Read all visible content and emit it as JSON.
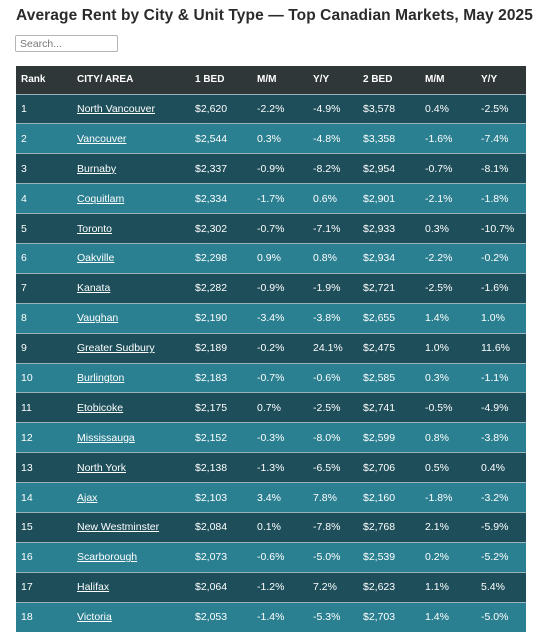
{
  "page": {
    "title": "Average Rent by City & Unit Type — Top Canadian Markets, May 2025"
  },
  "search": {
    "placeholder": "Search..."
  },
  "table": {
    "headers": [
      "Rank",
      "CITY/ AREA",
      "1 BED",
      "M/M",
      "Y/Y",
      "2 BED",
      "M/M",
      "Y/Y"
    ],
    "rows": [
      [
        "1",
        "North Vancouver",
        "$2,620",
        "-2.2%",
        "-4.9%",
        "$3,578",
        "0.4%",
        "-2.5%"
      ],
      [
        "2",
        "Vancouver",
        "$2,544",
        "0.3%",
        "-4.8%",
        "$3,358",
        "-1.6%",
        "-7.4%"
      ],
      [
        "3",
        "Burnaby",
        "$2,337",
        "-0.9%",
        "-8.2%",
        "$2,954",
        "-0.7%",
        "-8.1%"
      ],
      [
        "4",
        "Coquitlam",
        "$2,334",
        "-1.7%",
        "0.6%",
        "$2,901",
        "-2.1%",
        "-1.8%"
      ],
      [
        "5",
        "Toronto",
        "$2,302",
        "-0.7%",
        "-7.1%",
        "$2,933",
        "0.3%",
        "-10.7%"
      ],
      [
        "6",
        "Oakville",
        "$2,298",
        "0.9%",
        "0.8%",
        "$2,934",
        "-2.2%",
        "-0.2%"
      ],
      [
        "7",
        "Kanata",
        "$2,282",
        "-0.9%",
        "-1.9%",
        "$2,721",
        "-2.5%",
        "-1.6%"
      ],
      [
        "8",
        "Vaughan",
        "$2,190",
        "-3.4%",
        "-3.8%",
        "$2,655",
        "1.4%",
        "1.0%"
      ],
      [
        "9",
        "Greater Sudbury",
        "$2,189",
        "-0.2%",
        "24.1%",
        "$2,475",
        "1.0%",
        "11.6%"
      ],
      [
        "10",
        "Burlington",
        "$2,183",
        "-0.7%",
        "-0.6%",
        "$2,585",
        "0.3%",
        "-1.1%"
      ],
      [
        "11",
        "Etobicoke",
        "$2,175",
        "0.7%",
        "-2.5%",
        "$2,741",
        "-0.5%",
        "-4.9%"
      ],
      [
        "12",
        "Mississauga",
        "$2,152",
        "-0.3%",
        "-8.0%",
        "$2,599",
        "0.8%",
        "-3.8%"
      ],
      [
        "13",
        "North York",
        "$2,138",
        "-1.3%",
        "-6.5%",
        "$2,706",
        "0.5%",
        "0.4%"
      ],
      [
        "14",
        "Ajax",
        "$2,103",
        "3.4%",
        "7.8%",
        "$2,160",
        "-1.8%",
        "-3.2%"
      ],
      [
        "15",
        "New Westminster",
        "$2,084",
        "0.1%",
        "-7.8%",
        "$2,768",
        "2.1%",
        "-5.9%"
      ],
      [
        "16",
        "Scarborough",
        "$2,073",
        "-0.6%",
        "-5.0%",
        "$2,539",
        "0.2%",
        "-5.2%"
      ],
      [
        "17",
        "Halifax",
        "$2,064",
        "-1.2%",
        "7.2%",
        "$2,623",
        "1.1%",
        "5.4%"
      ],
      [
        "18",
        "Victoria",
        "$2,053",
        "-1.4%",
        "-5.3%",
        "$2,703",
        "1.4%",
        "-5.0%"
      ]
    ]
  },
  "colors": {
    "header_bg": "#2f3738",
    "row_dark": "#1d4e5a",
    "row_light": "#2a7f90",
    "text": "#ffffff"
  }
}
